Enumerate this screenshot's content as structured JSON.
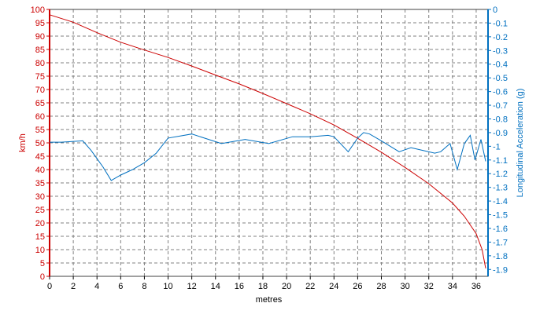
{
  "chart_data": {
    "type": "line",
    "xlabel": "metres",
    "xlim": [
      0,
      37
    ],
    "xticks": [
      0,
      2,
      4,
      6,
      8,
      10,
      12,
      14,
      16,
      18,
      20,
      22,
      24,
      26,
      28,
      30,
      32,
      34,
      36
    ],
    "y_left": {
      "label": "km/h",
      "ylim": [
        0,
        100
      ],
      "ticks": [
        0,
        5,
        10,
        15,
        20,
        25,
        30,
        35,
        40,
        45,
        50,
        55,
        60,
        65,
        70,
        75,
        80,
        85,
        90,
        95,
        100
      ],
      "color": "#cc0000"
    },
    "y_right": {
      "label": "Longitudinal Acceleration (g)",
      "ylim": [
        -1.95,
        0
      ],
      "ticks": [
        "0",
        "-0.1",
        "-0.2",
        "-0.3",
        "-0.4",
        "-0.5",
        "-0.6",
        "-0.7",
        "-0.8",
        "-0.9",
        "-1",
        "-1.1",
        "-1.2",
        "-1.3",
        "-1.4",
        "-1.5",
        "-1.6",
        "-1.7",
        "-1.8",
        "-1.9"
      ],
      "color": "#0070c0"
    },
    "grid": true,
    "series": [
      {
        "axis": "left",
        "color": "#cc0000",
        "x": [
          0,
          2,
          4,
          6,
          8,
          10,
          12,
          14,
          16,
          18,
          20,
          22,
          24,
          26,
          28,
          30,
          32,
          34,
          35,
          36,
          36.5,
          36.8
        ],
        "y": [
          98,
          95.2,
          91.3,
          87.7,
          84.8,
          82,
          78.8,
          75.4,
          72.1,
          68.5,
          64.7,
          60.9,
          56.7,
          51.7,
          46.5,
          40.8,
          34.7,
          27.5,
          22.5,
          16,
          10,
          3
        ]
      },
      {
        "axis": "right",
        "color": "#0070c0",
        "x": [
          0,
          1,
          2.8,
          3.5,
          4.5,
          5.2,
          6,
          7,
          8,
          9,
          10,
          12,
          14.5,
          16.5,
          18.5,
          20.5,
          22,
          23.5,
          24,
          25.2,
          26,
          26.5,
          27,
          28,
          29.5,
          30.5,
          31.5,
          32.5,
          33,
          33.8,
          34.4,
          35,
          35.5,
          35.9,
          36.4,
          36.8
        ],
        "y": [
          -0.97,
          -0.97,
          -0.96,
          -1.03,
          -1.15,
          -1.25,
          -1.21,
          -1.17,
          -1.12,
          -1.05,
          -0.94,
          -0.91,
          -0.98,
          -0.95,
          -0.98,
          -0.93,
          -0.93,
          -0.92,
          -0.93,
          -1.04,
          -0.94,
          -0.9,
          -0.91,
          -0.96,
          -1.04,
          -1.01,
          -1.03,
          -1.05,
          -1.04,
          -0.98,
          -1.17,
          -0.98,
          -0.92,
          -1.1,
          -0.95,
          -1.11
        ]
      }
    ]
  }
}
